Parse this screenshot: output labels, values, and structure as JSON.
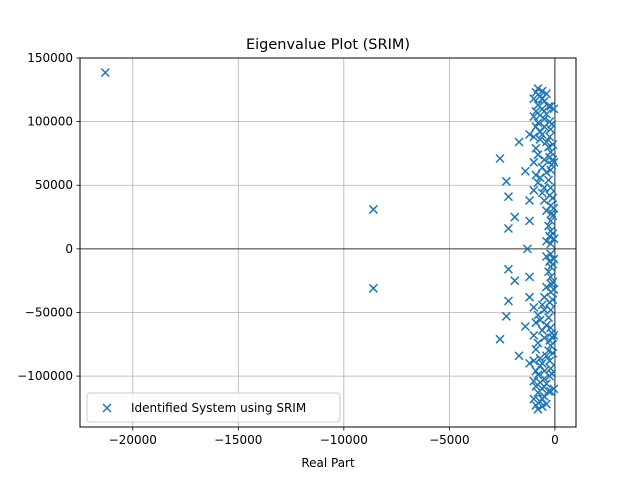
{
  "chart_data": {
    "type": "scatter",
    "title": "Eigenvalue Plot (SRIM)",
    "xlabel": "Real Part",
    "ylabel": "",
    "xlim": [
      -22500,
      1000
    ],
    "ylim": [
      -140000,
      150000
    ],
    "xticks": [
      -20000,
      -15000,
      -10000,
      -5000,
      0
    ],
    "yticks": [
      -100000,
      -50000,
      0,
      50000,
      100000,
      150000
    ],
    "xtick_labels": [
      "−20000",
      "−15000",
      "−10000",
      "−5000",
      "0"
    ],
    "ytick_labels": [
      "−100000",
      "−50000",
      "0",
      "50000",
      "100000",
      "150000"
    ],
    "grid": true,
    "legend_position": "lower-left",
    "series": [
      {
        "name": "Identified System using SRIM",
        "marker": "x",
        "color": "#1f77b4",
        "points": [
          [
            -21300,
            138500
          ],
          [
            -8600,
            31000
          ],
          [
            -2600,
            71000
          ],
          [
            -2300,
            53000
          ],
          [
            -2200,
            41000
          ],
          [
            -2200,
            16000
          ],
          [
            -1900,
            25000
          ],
          [
            -1700,
            84000
          ],
          [
            -1400,
            61000
          ],
          [
            -1300,
            0
          ],
          [
            -1200,
            90000
          ],
          [
            -1200,
            38000
          ],
          [
            -1200,
            22000
          ],
          [
            -1000,
            118000
          ],
          [
            -1000,
            104000
          ],
          [
            -1000,
            88000
          ],
          [
            -1000,
            68000
          ],
          [
            -1000,
            46000
          ],
          [
            -900,
            123000
          ],
          [
            -900,
            108000
          ],
          [
            -900,
            96000
          ],
          [
            -900,
            58000
          ],
          [
            -900,
            79000
          ],
          [
            -800,
            126000
          ],
          [
            -800,
            113000
          ],
          [
            -800,
            99000
          ],
          [
            -800,
            74000
          ],
          [
            -800,
            52000
          ],
          [
            -700,
            120000
          ],
          [
            -700,
            105000
          ],
          [
            -700,
            92000
          ],
          [
            -700,
            86000
          ],
          [
            -700,
            56000
          ],
          [
            -600,
            124000
          ],
          [
            -600,
            118000
          ],
          [
            -600,
            110000
          ],
          [
            -600,
            90000
          ],
          [
            -600,
            64000
          ],
          [
            -600,
            44000
          ],
          [
            -500,
            116000
          ],
          [
            -500,
            102000
          ],
          [
            -500,
            96000
          ],
          [
            -500,
            70000
          ],
          [
            -500,
            48000
          ],
          [
            -500,
            38000
          ],
          [
            -400,
            122000
          ],
          [
            -400,
            106000
          ],
          [
            -400,
            84000
          ],
          [
            -400,
            60000
          ],
          [
            -400,
            30000
          ],
          [
            -400,
            6000
          ],
          [
            -300,
            112000
          ],
          [
            -300,
            80000
          ],
          [
            -300,
            54000
          ],
          [
            -300,
            18000
          ],
          [
            -250,
            100000
          ],
          [
            -250,
            88000
          ],
          [
            -250,
            72000
          ],
          [
            -250,
            42000
          ],
          [
            -250,
            10000
          ],
          [
            -200,
            112000
          ],
          [
            -200,
            94000
          ],
          [
            -200,
            76000
          ],
          [
            -200,
            62000
          ],
          [
            -200,
            48000
          ],
          [
            -200,
            34000
          ],
          [
            -200,
            22000
          ],
          [
            -200,
            14000
          ],
          [
            -200,
            4000
          ],
          [
            -150,
            98000
          ],
          [
            -150,
            66000
          ],
          [
            -150,
            28000
          ],
          [
            -100,
            82000
          ],
          [
            -100,
            70000
          ],
          [
            -100,
            40000
          ],
          [
            -100,
            26000
          ],
          [
            -100,
            12000
          ],
          [
            -50,
            110000
          ],
          [
            -50,
            68000
          ],
          [
            -50,
            32000
          ],
          [
            -50,
            8000
          ],
          [
            -8600,
            -31000
          ],
          [
            -2600,
            -71000
          ],
          [
            -2300,
            -53000
          ],
          [
            -2200,
            -41000
          ],
          [
            -2200,
            -16000
          ],
          [
            -1900,
            -25000
          ],
          [
            -1700,
            -84000
          ],
          [
            -1400,
            -61000
          ],
          [
            -1200,
            -90000
          ],
          [
            -1200,
            -38000
          ],
          [
            -1200,
            -22000
          ],
          [
            -1000,
            -118000
          ],
          [
            -1000,
            -104000
          ],
          [
            -1000,
            -88000
          ],
          [
            -1000,
            -68000
          ],
          [
            -1000,
            -46000
          ],
          [
            -900,
            -123000
          ],
          [
            -900,
            -108000
          ],
          [
            -900,
            -96000
          ],
          [
            -900,
            -58000
          ],
          [
            -900,
            -79000
          ],
          [
            -800,
            -126000
          ],
          [
            -800,
            -113000
          ],
          [
            -800,
            -99000
          ],
          [
            -800,
            -74000
          ],
          [
            -800,
            -52000
          ],
          [
            -700,
            -120000
          ],
          [
            -700,
            -105000
          ],
          [
            -700,
            -92000
          ],
          [
            -700,
            -86000
          ],
          [
            -700,
            -56000
          ],
          [
            -600,
            -124000
          ],
          [
            -600,
            -118000
          ],
          [
            -600,
            -110000
          ],
          [
            -600,
            -90000
          ],
          [
            -600,
            -64000
          ],
          [
            -600,
            -44000
          ],
          [
            -500,
            -116000
          ],
          [
            -500,
            -102000
          ],
          [
            -500,
            -96000
          ],
          [
            -500,
            -70000
          ],
          [
            -500,
            -48000
          ],
          [
            -500,
            -38000
          ],
          [
            -400,
            -122000
          ],
          [
            -400,
            -106000
          ],
          [
            -400,
            -84000
          ],
          [
            -400,
            -60000
          ],
          [
            -400,
            -30000
          ],
          [
            -400,
            -6000
          ],
          [
            -300,
            -112000
          ],
          [
            -300,
            -80000
          ],
          [
            -300,
            -54000
          ],
          [
            -300,
            -18000
          ],
          [
            -250,
            -100000
          ],
          [
            -250,
            -88000
          ],
          [
            -250,
            -72000
          ],
          [
            -250,
            -42000
          ],
          [
            -250,
            -10000
          ],
          [
            -200,
            -112000
          ],
          [
            -200,
            -94000
          ],
          [
            -200,
            -76000
          ],
          [
            -200,
            -62000
          ],
          [
            -200,
            -48000
          ],
          [
            -200,
            -34000
          ],
          [
            -200,
            -22000
          ],
          [
            -200,
            -14000
          ],
          [
            -200,
            -4000
          ],
          [
            -150,
            -98000
          ],
          [
            -150,
            -66000
          ],
          [
            -150,
            -28000
          ],
          [
            -100,
            -82000
          ],
          [
            -100,
            -70000
          ],
          [
            -100,
            -40000
          ],
          [
            -100,
            -26000
          ],
          [
            -100,
            -12000
          ],
          [
            -50,
            -110000
          ],
          [
            -50,
            -68000
          ],
          [
            -50,
            -32000
          ],
          [
            -50,
            -8000
          ]
        ]
      }
    ]
  }
}
